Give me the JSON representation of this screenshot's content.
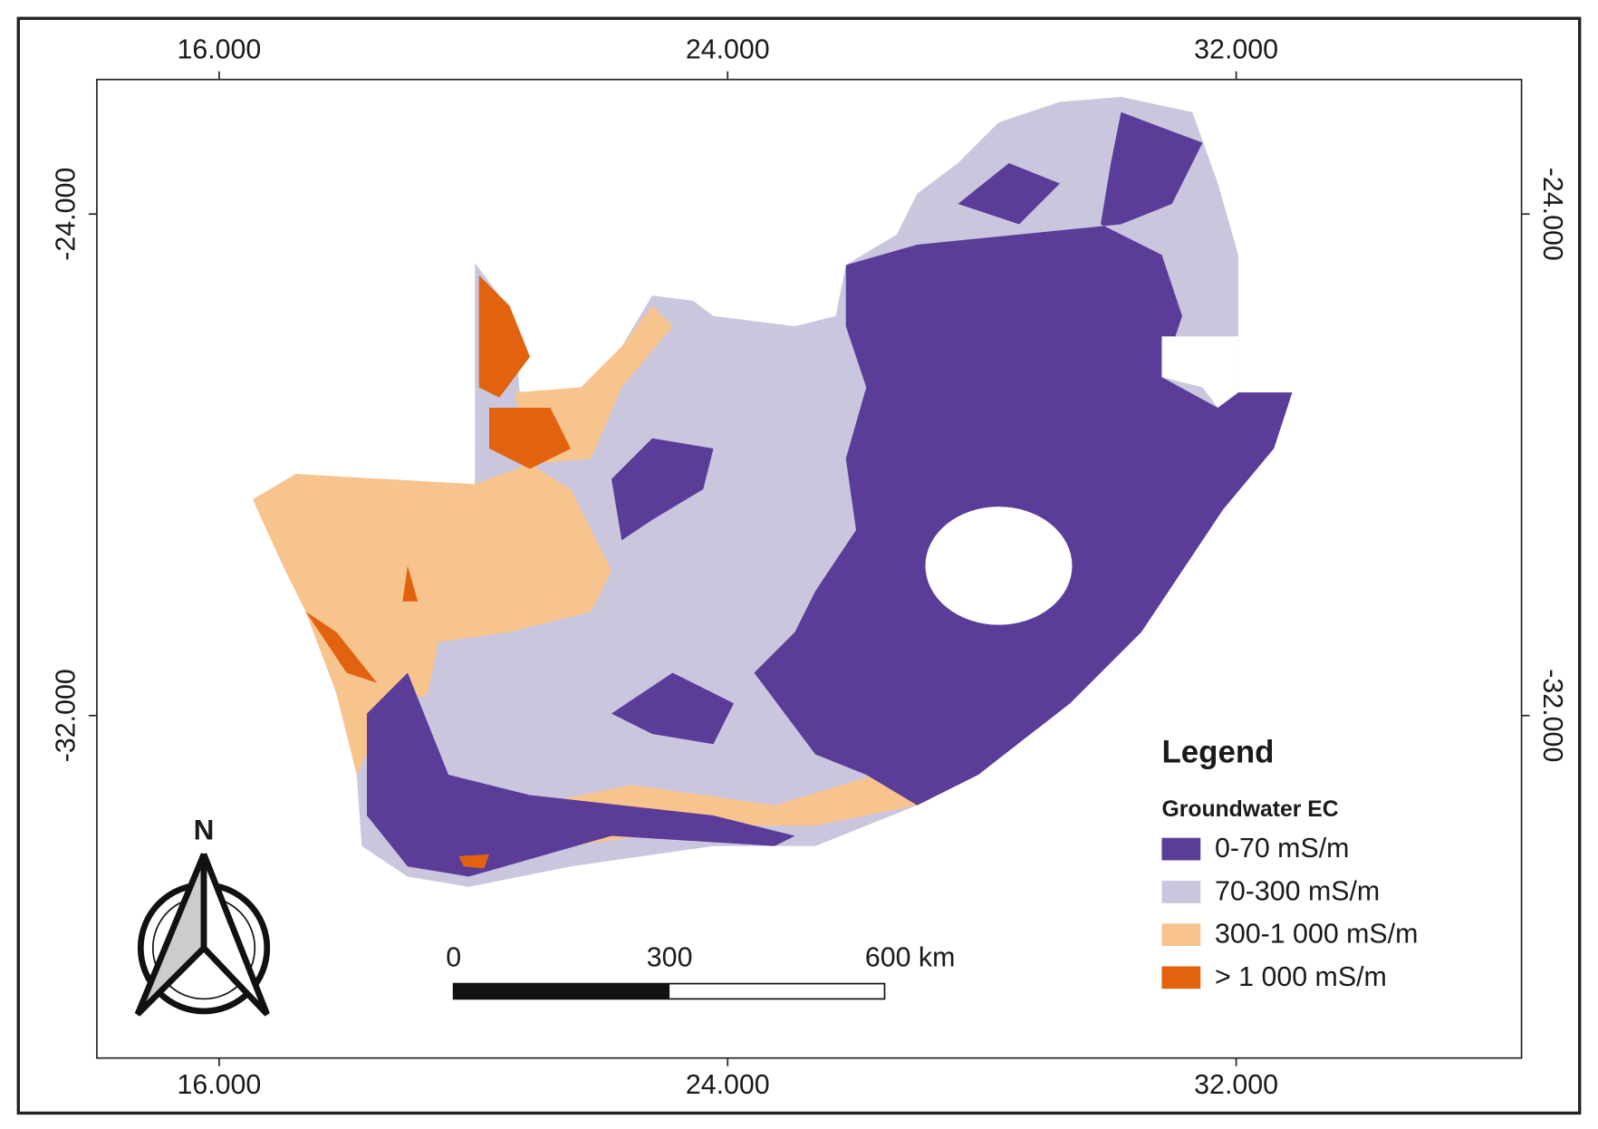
{
  "axes": {
    "top": [
      "16.000",
      "24.000",
      "32.000"
    ],
    "bottom": [
      "16.000",
      "24.000",
      "32.000"
    ],
    "left": [
      "-24.000",
      "-32.000"
    ],
    "right": [
      "-24.000",
      "-32.000"
    ]
  },
  "legend": {
    "title": "Legend",
    "subtitle": "Groundwater EC",
    "items": [
      {
        "label": "0-70 mS/m",
        "color": "#5b3c99"
      },
      {
        "label": "70-300 mS/m",
        "color": "#c9c6de"
      },
      {
        "label": "300-1 000 mS/m",
        "color": "#f8c48e"
      },
      {
        "label": "> 1 000 mS/m",
        "color": "#e2620f"
      }
    ]
  },
  "north": "N",
  "scale_bar": [
    "0",
    "300",
    "600 km"
  ]
}
